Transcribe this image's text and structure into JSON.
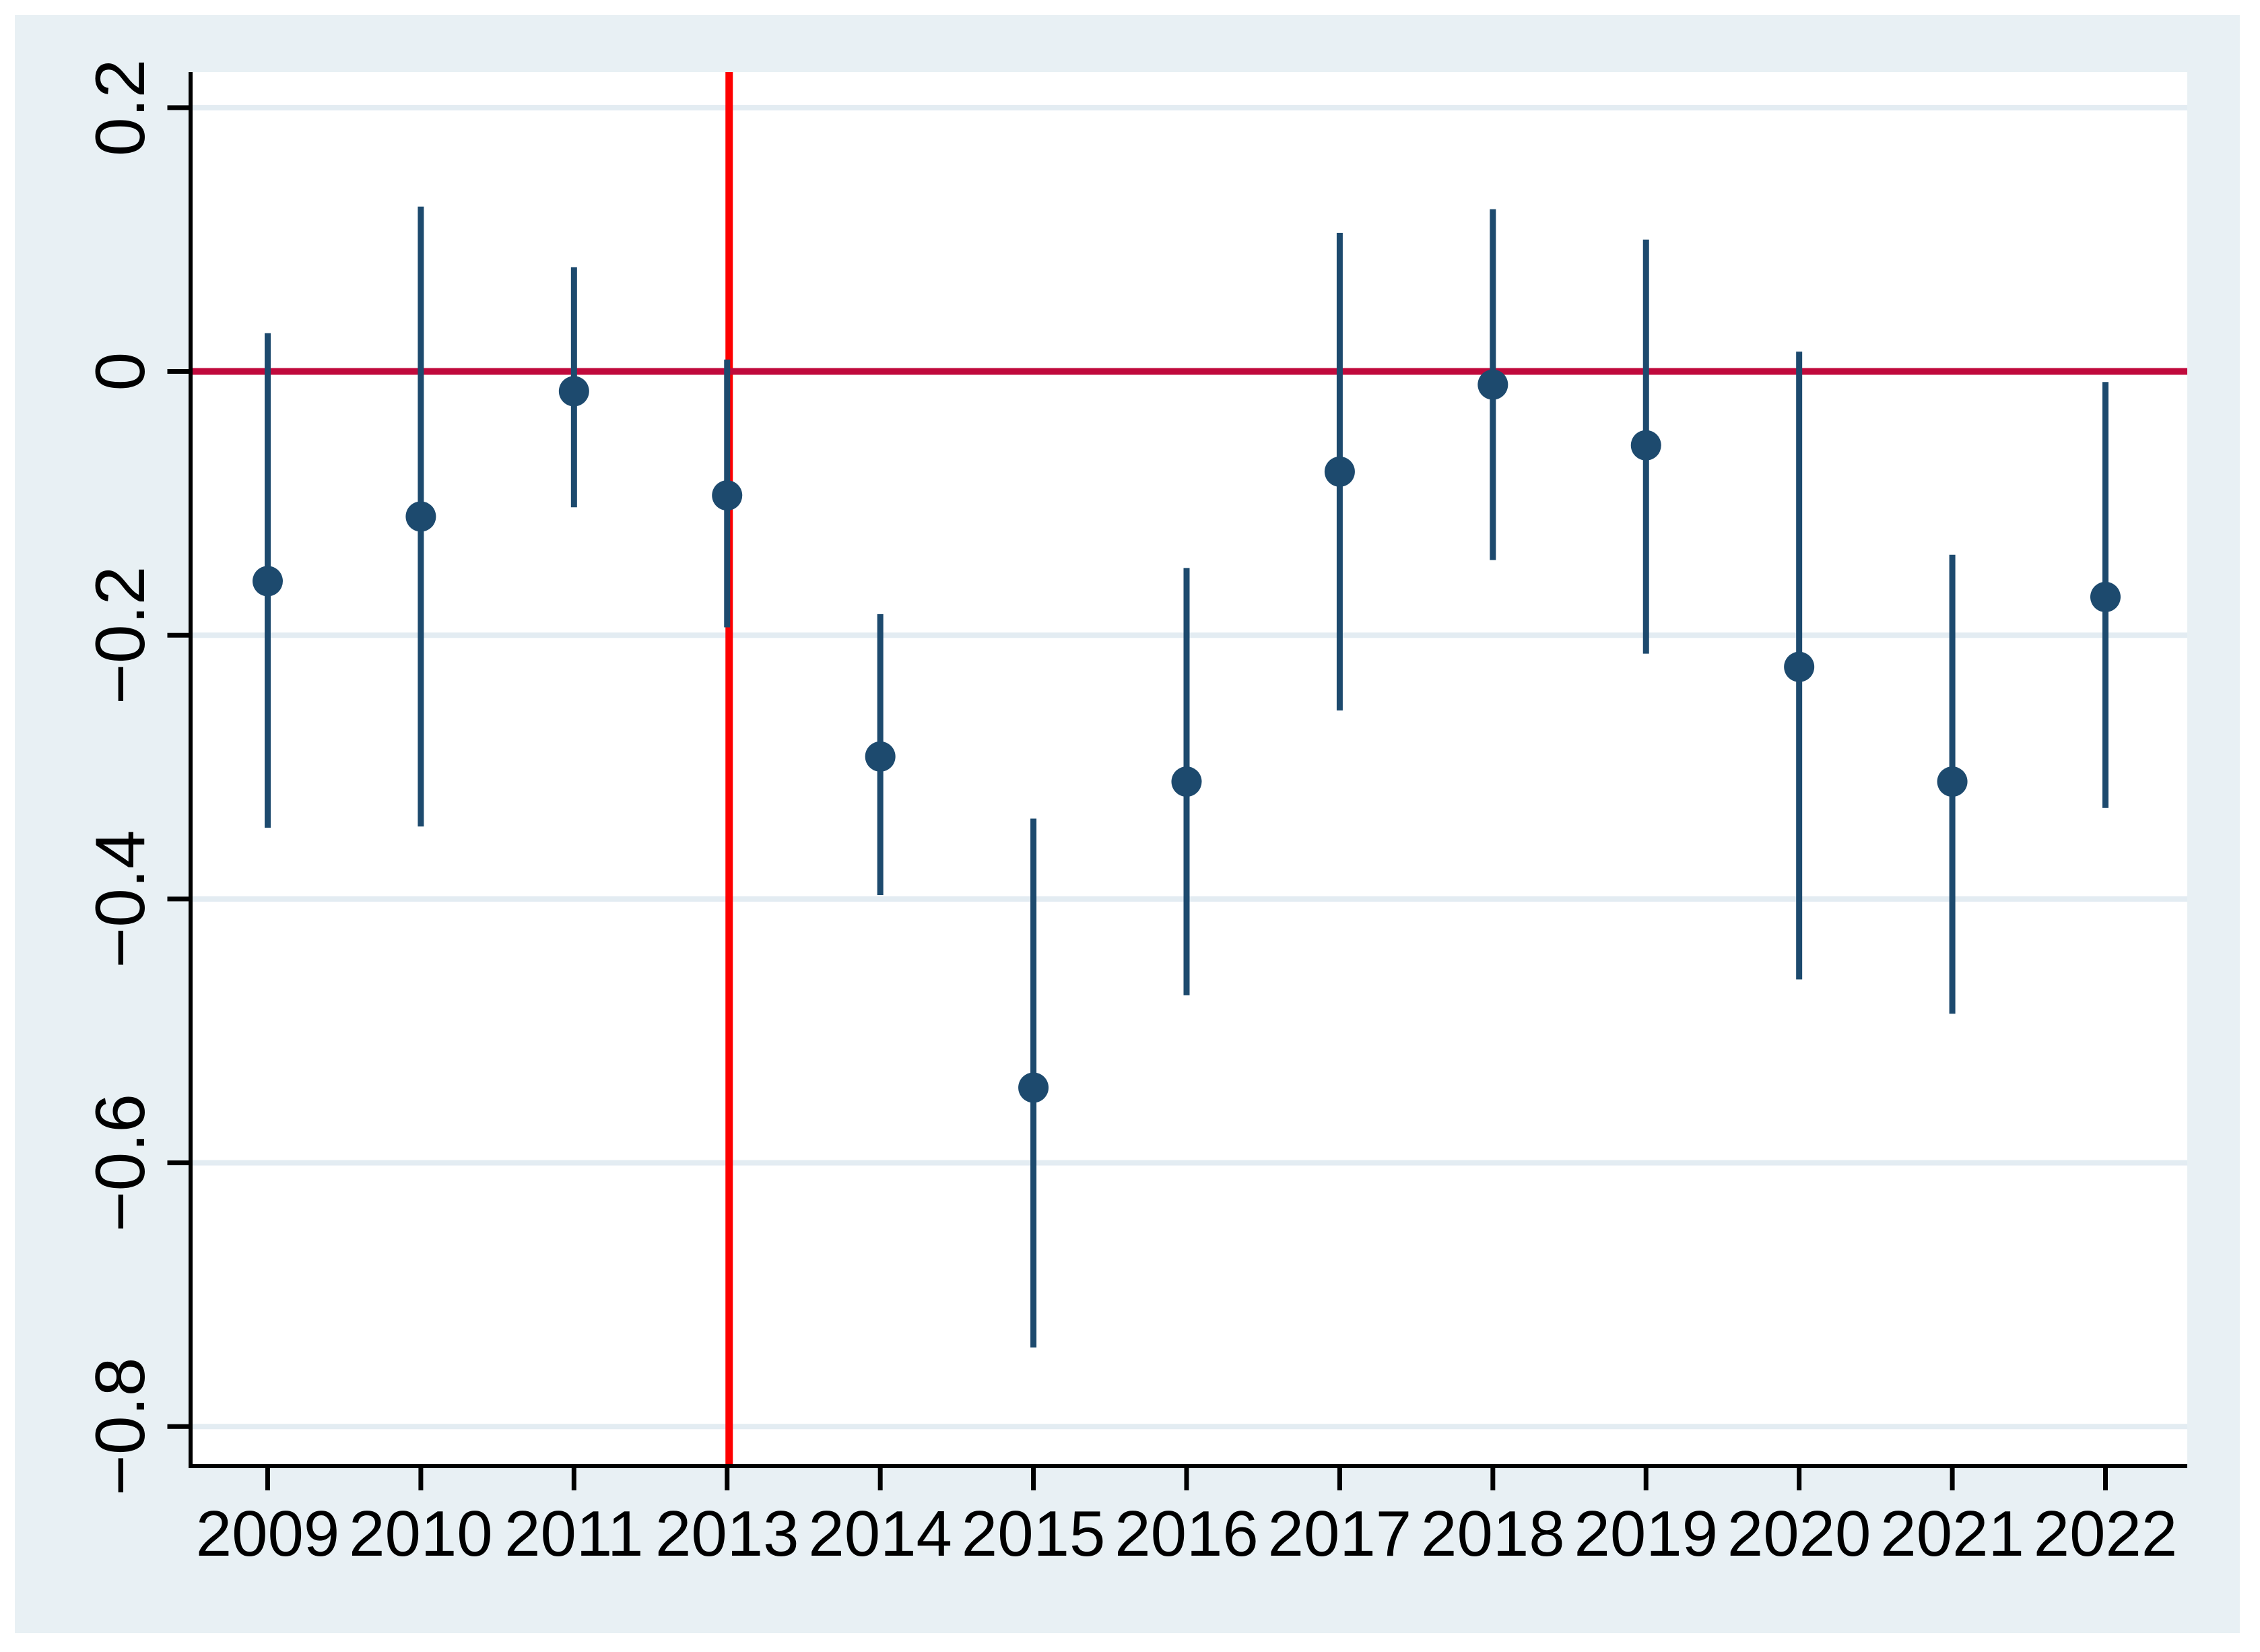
{
  "figure": {
    "background_color": "#e8f0f4",
    "outer_border_color": "#ffffff",
    "plot_background_color": "#ffffff",
    "axis_color": "#000000",
    "gridline_color": "#e3ecf2"
  },
  "chart_data": {
    "type": "scatter",
    "subtype": "coefficient-plot-with-confidence-intervals",
    "title": "",
    "xlabel": "",
    "ylabel": "",
    "grid": true,
    "legend": "none",
    "categories": [
      "2009",
      "2010",
      "2011",
      "2013",
      "2014",
      "2015",
      "2016",
      "2017",
      "2018",
      "2019",
      "2020",
      "2021",
      "2022"
    ],
    "series": [
      {
        "name": "estimate",
        "values": [
          -0.159,
          -0.11,
          -0.015,
          -0.094,
          -0.292,
          -0.543,
          -0.311,
          -0.076,
          -0.01,
          -0.056,
          -0.224,
          -0.311,
          -0.171
        ]
      },
      {
        "name": "ci_low",
        "values": [
          -0.346,
          -0.345,
          -0.103,
          -0.194,
          -0.397,
          -0.74,
          -0.473,
          -0.257,
          -0.143,
          -0.214,
          -0.461,
          -0.487,
          -0.331
        ]
      },
      {
        "name": "ci_high",
        "values": [
          0.029,
          0.125,
          0.079,
          0.009,
          -0.184,
          -0.339,
          -0.149,
          0.105,
          0.123,
          0.1,
          0.015,
          -0.139,
          -0.008
        ]
      }
    ],
    "marker_color": "#1d4a6e",
    "ci_bar_color": "#1d4a6e",
    "y_ticks": [
      0.2,
      0,
      -0.2,
      -0.4,
      -0.6,
      -0.8
    ],
    "y_tick_labels": [
      "0.2",
      "0",
      "−0.2",
      "−0.4",
      "−0.6",
      "−0.8"
    ],
    "ylim": [
      -0.83,
      0.227
    ],
    "reference_lines": {
      "horizontal": {
        "value": 0,
        "color": "#c00a3c"
      },
      "vertical": {
        "category": "2013",
        "color": "#fe0000"
      }
    }
  }
}
